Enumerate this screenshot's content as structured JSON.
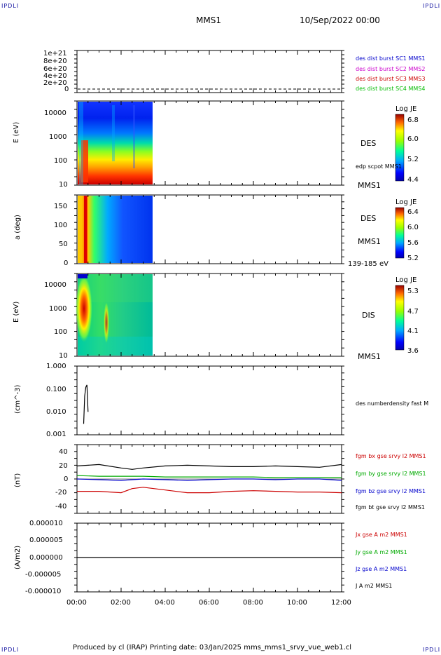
{
  "header": {
    "corner_left": "IPDLI",
    "corner_right": "IPDLI",
    "spacecraft": "MMS1",
    "datetime": "10/Sep/2022 00:00",
    "bottom_corner_left": "IPDLI",
    "bottom_corner_right": "IPDLI"
  },
  "footer": {
    "text": "Produced by cl (IRAP)   Printing date: 03/Jan/2025   mms_mms1_srvy_vue_web1.cl"
  },
  "x_axis": {
    "ticks": [
      "00:00",
      "02:00",
      "04:00",
      "06:00",
      "08:00",
      "10:00",
      "12:00"
    ],
    "range_hours": [
      0,
      12
    ]
  },
  "panels": {
    "p1": {
      "yticks": [
        "1e+21",
        "8e+20",
        "6e+20",
        "4e+20",
        "2e+20",
        "0"
      ],
      "legend": [
        {
          "text": "des dist burst SC1 MMS1",
          "color": "#0000cc"
        },
        {
          "text": "des dist burst SC2 MMS2",
          "color": "#cc00cc"
        },
        {
          "text": "des dist burst SC3 MMS3",
          "color": "#cc0000"
        },
        {
          "text": "des dist burst SC4 MMS4",
          "color": "#00bb00"
        }
      ]
    },
    "p2": {
      "ylabel": "E (eV)",
      "yticks": [
        "10000",
        "1000",
        "100",
        "10"
      ],
      "label_instrument": "DES",
      "label_extra": "edp scpot MMS1",
      "label_sc": "MMS1",
      "colorbar": {
        "title": "Log JE",
        "ticks": [
          "6.8",
          "6.0",
          "5.2",
          "4.4"
        ]
      }
    },
    "p3": {
      "ylabel": "a (deg)",
      "yticks": [
        "150",
        "100",
        "50",
        "0"
      ],
      "label_instrument": "DES",
      "label_sc": "MMS1",
      "label_energy": "139-185 eV",
      "colorbar": {
        "title": "Log JE",
        "ticks": [
          "6.4",
          "6.0",
          "5.6",
          "5.2"
        ]
      }
    },
    "p4": {
      "ylabel": "E (eV)",
      "yticks": [
        "10000",
        "1000",
        "100",
        "10"
      ],
      "label_instrument": "DIS",
      "label_sc": "MMS1",
      "colorbar": {
        "title": "Log JE",
        "ticks": [
          "5.3",
          "4.7",
          "4.1",
          "3.6"
        ]
      }
    },
    "p5": {
      "ylabel": "(cm^-3)",
      "yticks": [
        "1.000",
        "0.100",
        "0.010",
        "0.001"
      ],
      "legend": [
        {
          "text": "des numberdensity fast M",
          "color": "#000000"
        }
      ]
    },
    "p6": {
      "ylabel": "(nT)",
      "yticks": [
        "40",
        "20",
        "0",
        "-20",
        "-40"
      ],
      "legend": [
        {
          "text": "fgm bx gse srvy l2 MMS1",
          "color": "#cc0000"
        },
        {
          "text": "fgm by gse srvy l2 MMS1",
          "color": "#00aa00"
        },
        {
          "text": "fgm bz gse srvy l2 MMS1",
          "color": "#0000cc"
        },
        {
          "text": "fgm bt gse srvy l2 MMS1",
          "color": "#000000"
        }
      ]
    },
    "p7": {
      "ylabel": "(A/m2)",
      "yticks": [
        "0.000010",
        "0.000005",
        "0.000000",
        "-0.000005",
        "-0.000010"
      ],
      "legend": [
        {
          "text": "Jx gse A m2 MMS1",
          "color": "#cc0000"
        },
        {
          "text": "Jy gse A m2 MMS1",
          "color": "#00aa00"
        },
        {
          "text": "Jz gse A m2 MMS1",
          "color": "#0000cc"
        },
        {
          "text": "J A m2 MMS1",
          "color": "#000000"
        }
      ]
    }
  },
  "chart_data": {
    "type": "line",
    "x_unit": "hours since 00:00",
    "density": {
      "x": [
        0.3,
        0.35,
        0.4,
        0.45,
        0.5
      ],
      "y": [
        0.003,
        0.05,
        0.12,
        0.15,
        0.01
      ]
    },
    "magnetic_field": {
      "x": [
        0,
        1,
        2,
        2.5,
        3,
        4,
        5,
        6,
        7,
        8,
        9,
        10,
        11,
        12
      ],
      "bt": [
        19,
        21,
        16,
        14,
        16,
        19,
        20,
        19,
        18,
        18,
        19,
        18,
        17,
        21
      ],
      "bx": [
        -18,
        -18,
        -20,
        -14,
        -12,
        -16,
        -20,
        -20,
        -18,
        -17,
        -18,
        -19,
        -19,
        -20
      ],
      "by": [
        5,
        4,
        4,
        4,
        4,
        3,
        3,
        3,
        3,
        3,
        2,
        2,
        2,
        2
      ],
      "bz": [
        0,
        -1,
        -2,
        -1,
        0,
        -1,
        -2,
        -1,
        0,
        0,
        -1,
        0,
        0,
        -2
      ]
    },
    "current_density": {
      "x": [
        0,
        12
      ],
      "j": [
        0,
        0
      ]
    }
  }
}
